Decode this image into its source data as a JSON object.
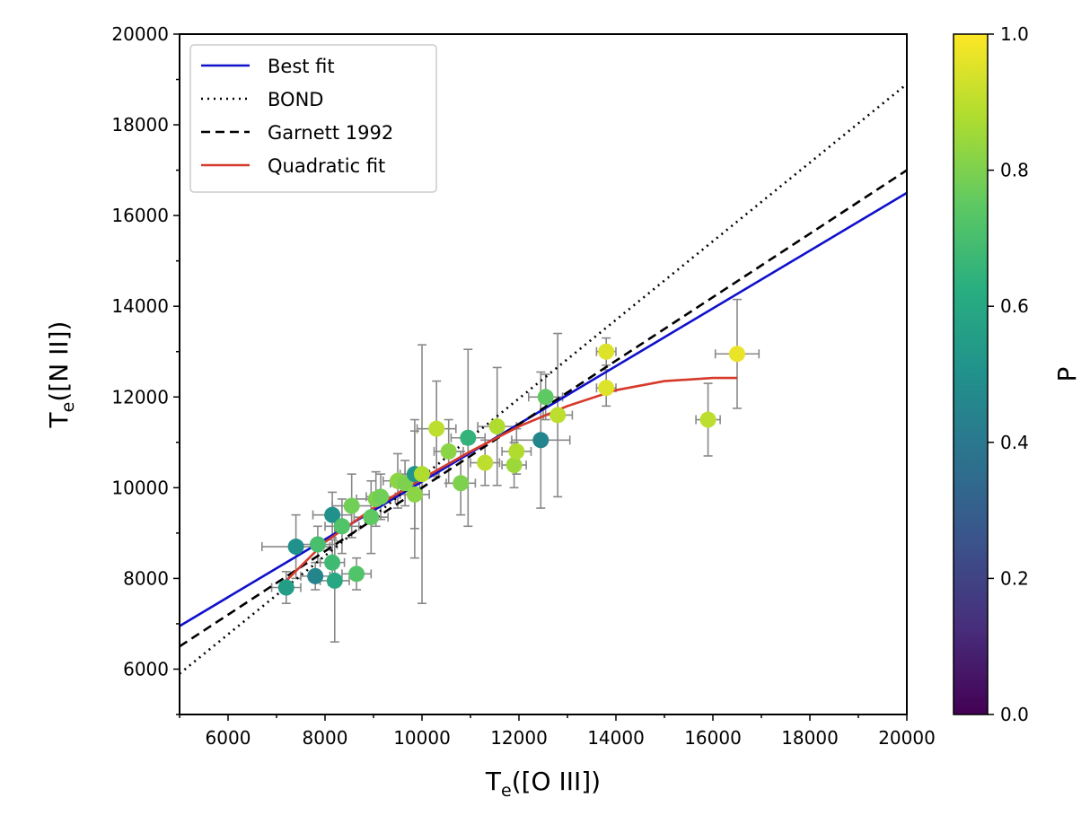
{
  "chart_data": {
    "type": "scatter",
    "xlabel": {
      "main": "T",
      "sub": "e",
      "suffix": "([O III])"
    },
    "ylabel": {
      "main": "T",
      "sub": "e",
      "suffix": "([N II])"
    },
    "xlim": [
      5000,
      20000
    ],
    "ylim": [
      5000,
      20000
    ],
    "xticks": [
      6000,
      8000,
      10000,
      12000,
      14000,
      16000,
      18000,
      20000
    ],
    "yticks": [
      6000,
      8000,
      10000,
      12000,
      14000,
      16000,
      18000,
      20000
    ],
    "grid": false,
    "legend_position": "top-left",
    "colorbar": {
      "label": "P",
      "range": [
        0.0,
        1.0
      ],
      "ticks": [
        "0.0",
        "0.2",
        "0.4",
        "0.6",
        "0.8",
        "1.0"
      ],
      "colormap": "viridis"
    },
    "lines": [
      {
        "name": "Best fit",
        "style": "solid",
        "color": "#1010cc",
        "x": [
          5000,
          20000
        ],
        "y": [
          6950,
          16500
        ]
      },
      {
        "name": "BOND",
        "style": "dotted",
        "color": "#000000",
        "x": [
          5000,
          20000
        ],
        "y": [
          5900,
          18900
        ]
      },
      {
        "name": "Garnett 1992",
        "style": "dashed",
        "color": "#000000",
        "x": [
          5000,
          20000
        ],
        "y": [
          6500,
          17000
        ]
      },
      {
        "name": "Quadratic fit",
        "style": "solid",
        "color": "#d63a2a",
        "x": [
          7200,
          8000,
          9000,
          10000,
          11000,
          12000,
          13000,
          14000,
          15000,
          16000,
          16500
        ],
        "y": [
          7950,
          8800,
          9550,
          10200,
          10800,
          11350,
          11800,
          12150,
          12350,
          12420,
          12420
        ]
      }
    ],
    "points": [
      {
        "x": 7200,
        "y": 7800,
        "p": 0.55,
        "xerr": 300,
        "yerr": 350
      },
      {
        "x": 7400,
        "y": 8700,
        "p": 0.5,
        "xerr": 700,
        "yerr": 700
      },
      {
        "x": 7800,
        "y": 8050,
        "p": 0.45,
        "xerr": 300,
        "yerr": 300
      },
      {
        "x": 7850,
        "y": 8750,
        "p": 0.7,
        "xerr": 400,
        "yerr": 400
      },
      {
        "x": 8150,
        "y": 9400,
        "p": 0.5,
        "xerr": 400,
        "yerr": 500
      },
      {
        "x": 8200,
        "y": 7950,
        "p": 0.6,
        "xerr": 300,
        "yerr": 1350
      },
      {
        "x": 8150,
        "y": 8350,
        "p": 0.68,
        "xerr": 250,
        "yerr": 500
      },
      {
        "x": 8350,
        "y": 9150,
        "p": 0.72,
        "xerr": 350,
        "yerr": 600
      },
      {
        "x": 8550,
        "y": 9600,
        "p": 0.78,
        "xerr": 400,
        "yerr": 700
      },
      {
        "x": 8650,
        "y": 8100,
        "p": 0.72,
        "xerr": 300,
        "yerr": 350
      },
      {
        "x": 8950,
        "y": 9350,
        "p": 0.75,
        "xerr": 350,
        "yerr": 800
      },
      {
        "x": 9050,
        "y": 9750,
        "p": 0.8,
        "xerr": 400,
        "yerr": 600
      },
      {
        "x": 9150,
        "y": 9800,
        "p": 0.78,
        "xerr": 300,
        "yerr": 500
      },
      {
        "x": 9500,
        "y": 10150,
        "p": 0.82,
        "xerr": 300,
        "yerr": 600
      },
      {
        "x": 9650,
        "y": 10100,
        "p": 0.8,
        "xerr": 300,
        "yerr": 500
      },
      {
        "x": 9850,
        "y": 10300,
        "p": 0.52,
        "xerr": 300,
        "yerr": 1200
      },
      {
        "x": 9850,
        "y": 9850,
        "p": 0.82,
        "xerr": 300,
        "yerr": 1400
      },
      {
        "x": 10000,
        "y": 10300,
        "p": 0.88,
        "xerr": 350,
        "yerr": 2850
      },
      {
        "x": 10300,
        "y": 11300,
        "p": 0.9,
        "xerr": 400,
        "yerr": 1050
      },
      {
        "x": 10550,
        "y": 10800,
        "p": 0.82,
        "xerr": 300,
        "yerr": 700
      },
      {
        "x": 10800,
        "y": 10100,
        "p": 0.8,
        "xerr": 300,
        "yerr": 700
      },
      {
        "x": 10950,
        "y": 11100,
        "p": 0.65,
        "xerr": 350,
        "yerr": 1950
      },
      {
        "x": 11300,
        "y": 10550,
        "p": 0.9,
        "xerr": 300,
        "yerr": 500
      },
      {
        "x": 11550,
        "y": 11350,
        "p": 0.88,
        "xerr": 400,
        "yerr": 1300
      },
      {
        "x": 11900,
        "y": 10500,
        "p": 0.85,
        "xerr": 250,
        "yerr": 500
      },
      {
        "x": 11950,
        "y": 10800,
        "p": 0.88,
        "xerr": 300,
        "yerr": 500
      },
      {
        "x": 12450,
        "y": 11050,
        "p": 0.45,
        "xerr": 600,
        "yerr": 1500
      },
      {
        "x": 12550,
        "y": 12000,
        "p": 0.75,
        "xerr": 350,
        "yerr": 500
      },
      {
        "x": 12800,
        "y": 11600,
        "p": 0.9,
        "xerr": 300,
        "yerr": 1800
      },
      {
        "x": 13800,
        "y": 13000,
        "p": 0.95,
        "xerr": 200,
        "yerr": 300
      },
      {
        "x": 13800,
        "y": 12200,
        "p": 0.95,
        "xerr": 200,
        "yerr": 400
      },
      {
        "x": 15900,
        "y": 11500,
        "p": 0.9,
        "xerr": 250,
        "yerr": 800
      },
      {
        "x": 16500,
        "y": 12950,
        "p": 0.97,
        "xerr": 450,
        "yerr": 1200
      }
    ]
  }
}
